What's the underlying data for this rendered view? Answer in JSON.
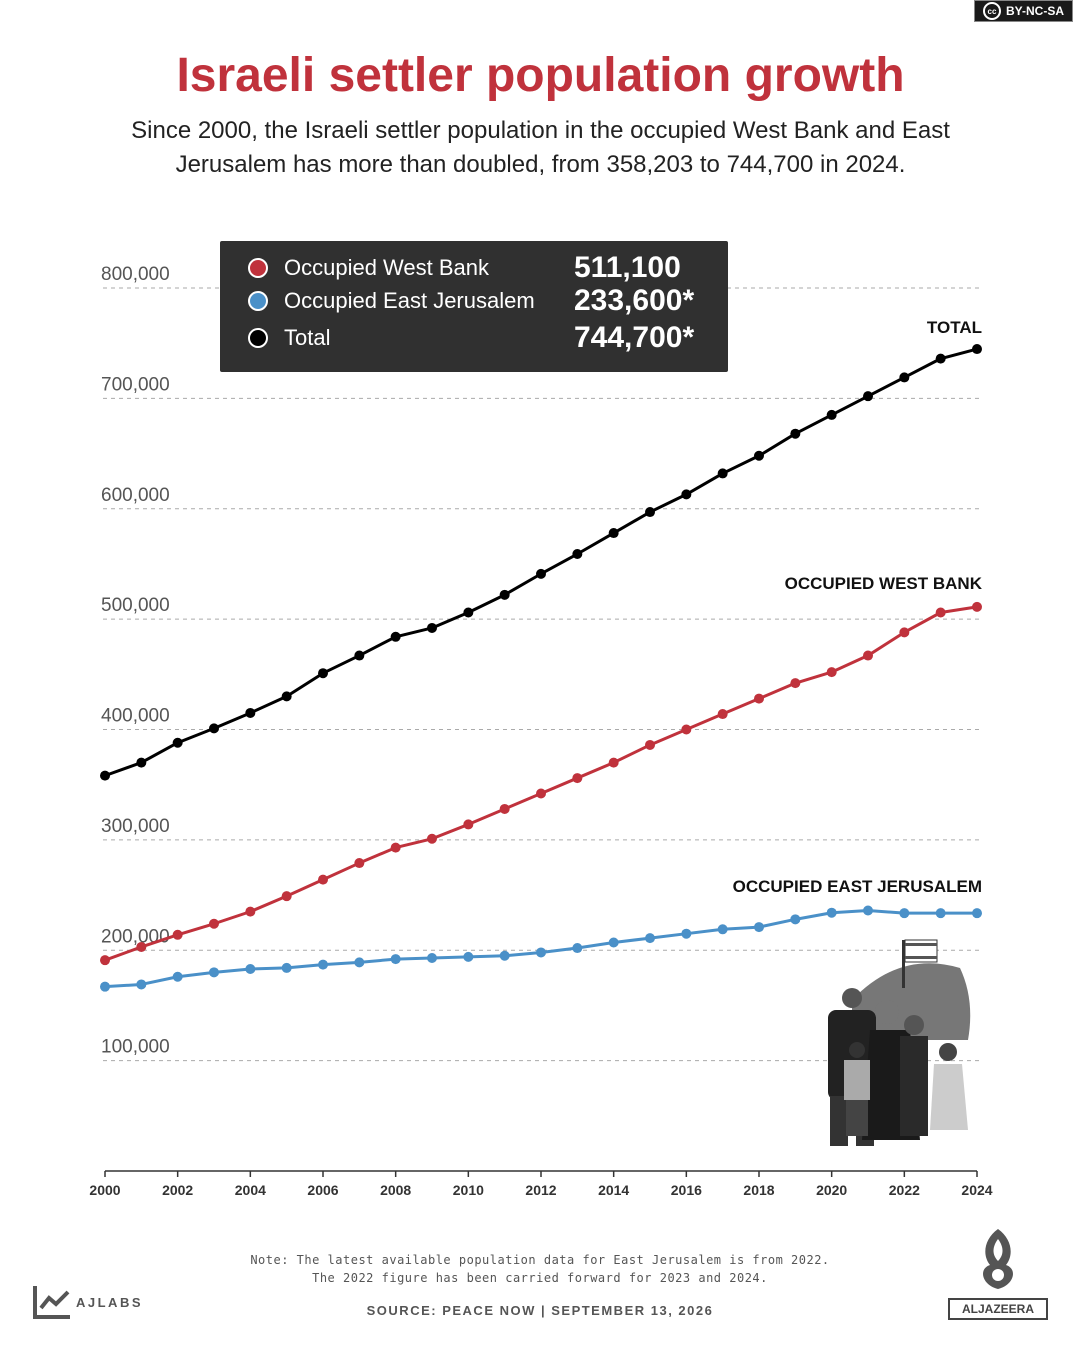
{
  "license": "BY-NC-SA",
  "header": {
    "title": "Israeli settler population growth",
    "subtitle": "Since 2000, the Israeli settler population in the occupied West Bank and East Jerusalem has more than doubled, from 358,203 to 744,700 in 2024."
  },
  "legend": {
    "items": [
      {
        "label": "Occupied West Bank",
        "value": "511,100",
        "color": "#c0323c"
      },
      {
        "label": "Occupied East Jerusalem",
        "value": "233,600*",
        "color": "#4a90c8"
      },
      {
        "label": "Total",
        "value": "744,700*",
        "color": "#000000"
      }
    ]
  },
  "chart_data": {
    "type": "line",
    "x": [
      2000,
      2001,
      2002,
      2003,
      2004,
      2005,
      2006,
      2007,
      2008,
      2009,
      2010,
      2011,
      2012,
      2013,
      2014,
      2015,
      2016,
      2017,
      2018,
      2019,
      2020,
      2021,
      2022,
      2023,
      2024
    ],
    "x_tick_labels": [
      "2000",
      "2002",
      "2004",
      "2006",
      "2008",
      "2010",
      "2012",
      "2014",
      "2016",
      "2018",
      "2020",
      "2022",
      "2024"
    ],
    "y_tick_labels": [
      "100,000",
      "200,000",
      "300,000",
      "400,000",
      "500,000",
      "600,000",
      "700,000",
      "800,000"
    ],
    "ylim": [
      0,
      800000
    ],
    "grid": "horizontal dashed",
    "series": [
      {
        "name": "Total",
        "end_label": "TOTAL",
        "color": "#000000",
        "values": [
          358203,
          370000,
          388000,
          401000,
          415000,
          430000,
          451000,
          467000,
          484000,
          492000,
          506000,
          522000,
          541000,
          559000,
          578000,
          597000,
          613000,
          632000,
          648000,
          668000,
          685000,
          702000,
          719000,
          736000,
          744700
        ]
      },
      {
        "name": "Occupied West Bank",
        "end_label": "OCCUPIED WEST BANK",
        "color": "#c0323c",
        "values": [
          191000,
          203000,
          214000,
          224000,
          235000,
          249000,
          264000,
          279000,
          293000,
          301000,
          314000,
          328000,
          342000,
          356000,
          370000,
          386000,
          400000,
          414000,
          428000,
          442000,
          452000,
          467000,
          488000,
          506000,
          511100
        ]
      },
      {
        "name": "Occupied East Jerusalem",
        "end_label": "OCCUPIED EAST JERUSALEM",
        "color": "#4a90c8",
        "values": [
          167000,
          169000,
          176000,
          180000,
          183000,
          184000,
          187000,
          189000,
          192000,
          193000,
          194000,
          195000,
          198000,
          202000,
          207000,
          211000,
          215000,
          219000,
          221000,
          228000,
          234000,
          236000,
          233600,
          233600,
          233600
        ]
      }
    ]
  },
  "footer": {
    "note_line1": "Note: The latest available population data for East Jerusalem is from 2022.",
    "note_line2": "The 2022 figure has been carried forward for 2023 and 2024.",
    "source": "SOURCE: PEACE NOW  |  SEPTEMBER 13, 2026",
    "brand_left": "AJLABS",
    "brand_right": "ALJAZEERA"
  }
}
